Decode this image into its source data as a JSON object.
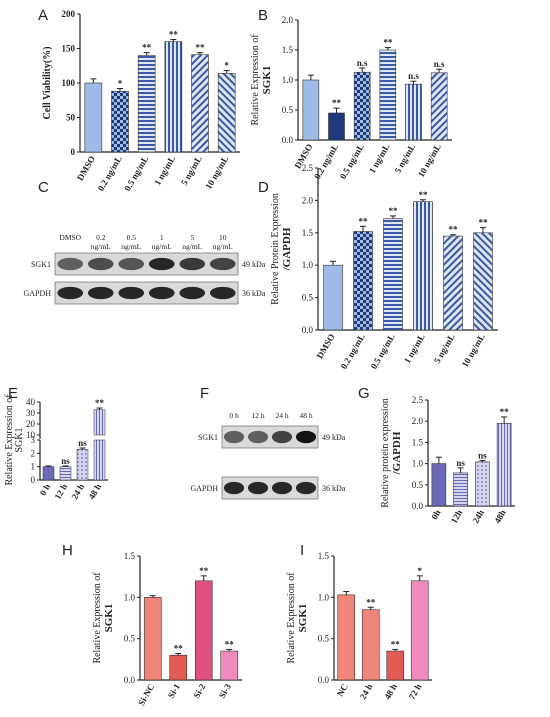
{
  "figure": {
    "letters": [
      "A",
      "B",
      "C",
      "D",
      "E",
      "F",
      "G",
      "H",
      "I"
    ]
  },
  "colors": {
    "blue_light": "#9dbbe6",
    "blue_dark": "#5a7fc0",
    "navy": "#1e3a7a",
    "purple_light": "#b9b8e3",
    "purple_dark": "#6b69b8",
    "salmon": "#f0857a",
    "magenta": "#e04f7e",
    "pink": "#f28bbd",
    "red_bar": "#e25b55"
  },
  "chart_data": [
    {
      "id": "A",
      "type": "bar",
      "categories": [
        "DMSO",
        "0.2 ng/mL",
        "0.5 ng/mL",
        "1 ng/mL",
        "5 ng/mL",
        "10 ng/mL"
      ],
      "values": [
        100,
        88,
        140,
        160,
        141,
        114
      ],
      "errors": [
        6,
        4,
        4,
        3,
        3,
        4
      ],
      "significance": [
        "",
        "*",
        "**",
        "**",
        "**",
        "*"
      ],
      "ylabel": "Cell Viability(%)",
      "yticks": [
        "0",
        "50",
        "100",
        "150",
        "200"
      ],
      "ylim": [
        0,
        200
      ]
    },
    {
      "id": "B",
      "type": "bar",
      "categories": [
        "DMSO",
        "0.2 ng/mL",
        "0.5 ng/mL",
        "1 ng/mL",
        "5 ng/mL",
        "10 ng/mL"
      ],
      "values": [
        1.0,
        0.45,
        1.13,
        1.5,
        0.93,
        1.12
      ],
      "errors": [
        0.08,
        0.08,
        0.07,
        0.04,
        0.05,
        0.06
      ],
      "significance": [
        "",
        "**",
        "n.s",
        "**",
        "n.s",
        "n.s"
      ],
      "ylabel_line1": "Relative Expression of",
      "ylabel_line2": "SGK1",
      "yticks": [
        "0.0",
        "0.5",
        "1.0",
        "1.5",
        "2.0"
      ],
      "ylim": [
        0,
        2.0
      ]
    },
    {
      "id": "D",
      "type": "bar",
      "categories": [
        "DMSO",
        "0.2 ng/mL",
        "0.5 ng/mL",
        "1 ng/mL",
        "5 ng/mL",
        "10 ng/mL"
      ],
      "values": [
        1.0,
        1.52,
        1.72,
        1.98,
        1.45,
        1.5
      ],
      "errors": [
        0.06,
        0.08,
        0.04,
        0.03,
        0.02,
        0.08
      ],
      "significance": [
        "",
        "**",
        "**",
        "**",
        "**",
        "**"
      ],
      "ylabel_line1": "Relative Protein Expression",
      "ylabel_line2": "/GAPDH",
      "yticks": [
        "0.0",
        "0.5",
        "1.0",
        "1.5",
        "2.0",
        "2.5"
      ],
      "ylim": [
        0,
        2.5
      ]
    },
    {
      "id": "E",
      "type": "bar",
      "broken_axis": true,
      "categories": [
        "0 h",
        "12 h",
        "24 h",
        "48 h"
      ],
      "values": [
        1.0,
        1.0,
        2.3,
        33
      ],
      "errors": [
        0.05,
        0.05,
        0.1,
        1.5
      ],
      "significance": [
        "",
        "ns",
        "ns",
        "**"
      ],
      "ylabel_line1": "Relative Expression of",
      "ylabel_line2": "SGK1",
      "yticks_lower": [
        "0",
        "1",
        "2",
        "3"
      ],
      "yticks_upper": [
        "10",
        "20",
        "30",
        "40"
      ],
      "ylim_lower": [
        0,
        3
      ],
      "ylim_upper": [
        3,
        40
      ]
    },
    {
      "id": "G",
      "type": "bar",
      "categories": [
        "0h",
        "12h",
        "24h",
        "48h"
      ],
      "values": [
        1.0,
        0.78,
        1.04,
        1.95
      ],
      "errors": [
        0.15,
        0.12,
        0.03,
        0.15
      ],
      "significance": [
        "",
        "ns",
        "ns",
        "**"
      ],
      "ylabel_line1": "Relative protein expression",
      "ylabel_line2": "/GAPDH",
      "yticks": [
        "0.0",
        "0.5",
        "1.0",
        "1.5",
        "2.0",
        "2.5"
      ],
      "ylim": [
        0,
        2.5
      ]
    },
    {
      "id": "H",
      "type": "bar",
      "categories": [
        "Si-NC",
        "Si-1",
        "Si-2",
        "Si-3"
      ],
      "values": [
        1.0,
        0.3,
        1.2,
        0.35
      ],
      "errors": [
        0.02,
        0.02,
        0.06,
        0.02
      ],
      "significance": [
        "",
        "**",
        "**",
        "**"
      ],
      "ylabel_line1": "Relative Expression of",
      "ylabel_line2": "SGK1",
      "yticks": [
        "0.0",
        "0.5",
        "1.0",
        "1.5"
      ],
      "ylim": [
        0,
        1.5
      ]
    },
    {
      "id": "I",
      "type": "bar",
      "categories": [
        "NC",
        "24 h",
        "48 h",
        "72 h"
      ],
      "values": [
        1.03,
        0.85,
        0.35,
        1.2
      ],
      "errors": [
        0.04,
        0.03,
        0.02,
        0.06
      ],
      "significance": [
        "",
        "**",
        "**",
        "*"
      ],
      "ylabel_line1": "Relative Expression of",
      "ylabel_line2": "SGK1",
      "yticks": [
        "0.0",
        "0.5",
        "1.0",
        "1.5"
      ],
      "ylim": [
        0,
        1.5
      ]
    }
  ],
  "blot_C": {
    "lanes": [
      "DMSO",
      "0.2\nng/mL",
      "0.5\nng/mL",
      "1\nng/mL",
      "5\nng/mL",
      "10\nng/mL"
    ],
    "rows": [
      "SGK1",
      "GAPDH"
    ],
    "sizes": [
      "49 kDa",
      "36 kDa"
    ],
    "band_intensity_sgk1": [
      0.55,
      0.65,
      0.6,
      0.85,
      0.75,
      0.7
    ]
  },
  "blot_F": {
    "lanes": [
      "0 h",
      "12 h",
      "24 h",
      "48 h"
    ],
    "rows": [
      "SGK1",
      "GAPDH"
    ],
    "sizes": [
      "49 kDa",
      "36 kDa"
    ],
    "band_intensity_sgk1": [
      0.55,
      0.55,
      0.7,
      0.95
    ]
  }
}
